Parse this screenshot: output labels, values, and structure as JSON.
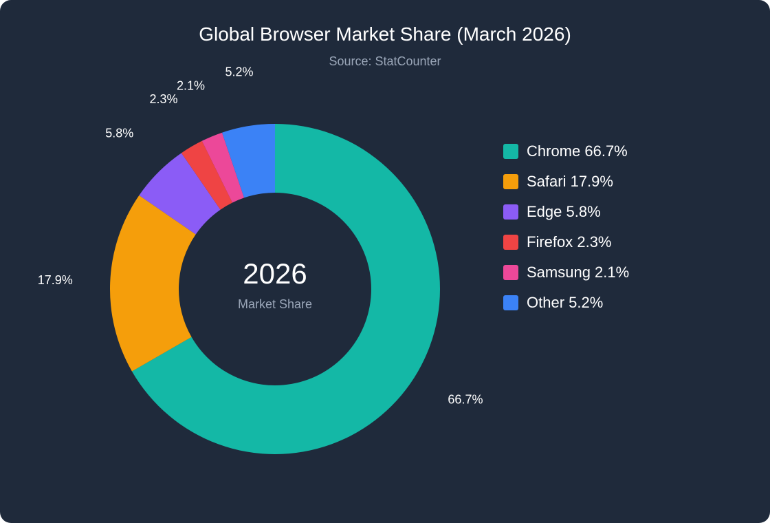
{
  "chart_data": {
    "type": "pie",
    "title": "Global Browser Market Share (March 2026)",
    "subtitle": "Source: StatCounter",
    "center_label": "2026",
    "center_sublabel": "Market Share",
    "slices": [
      {
        "name": "Chrome",
        "value": 66.7,
        "label": "66.7%",
        "legend": "Chrome 66.7%",
        "color": "#14b8a6"
      },
      {
        "name": "Safari",
        "value": 17.9,
        "label": "17.9%",
        "legend": "Safari 17.9%",
        "color": "#f59e0b"
      },
      {
        "name": "Edge",
        "value": 5.8,
        "label": "5.8%",
        "legend": "Edge 5.8%",
        "color": "#8b5cf6"
      },
      {
        "name": "Firefox",
        "value": 2.3,
        "label": "2.3%",
        "legend": "Firefox 2.3%",
        "color": "#ef4444"
      },
      {
        "name": "Samsung",
        "value": 2.1,
        "label": "2.1%",
        "legend": "Samsung 2.1%",
        "color": "#ec4899"
      },
      {
        "name": "Other",
        "value": 5.2,
        "label": "5.2%",
        "legend": "Other 5.2%",
        "color": "#3b82f6"
      }
    ],
    "legend_position": "right"
  },
  "colors": {
    "background": "#1f2a3b",
    "text": "#ffffff",
    "muted": "#9aa6b8"
  }
}
